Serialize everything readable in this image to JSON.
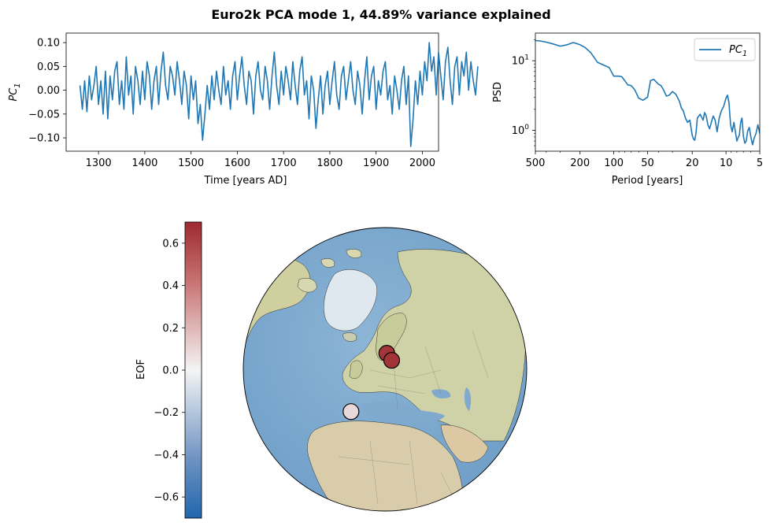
{
  "figure": {
    "title": "Euro2k PCA mode 1, 44.89% variance explained"
  },
  "colors": {
    "series": "#1f77b4",
    "eof_high": "#9e2a2f",
    "eof_mid": "#f5f5f5",
    "eof_low": "#2166ac",
    "ocean": "#7fa9cd",
    "land": "#d9d6b0"
  },
  "chart_data": [
    {
      "id": "pc_timeseries",
      "type": "line",
      "xlabel": "Time [years AD]",
      "ylabel_main": "PC",
      "ylabel_sub": "1",
      "xlim": [
        1230,
        2035
      ],
      "ylim": [
        -0.128,
        0.12
      ],
      "xticks": [
        1300,
        1400,
        1500,
        1600,
        1700,
        1800,
        1900,
        2000
      ],
      "yticks": [
        -0.1,
        -0.05,
        0.0,
        0.05,
        0.1
      ],
      "ytick_labels": [
        "−0.10",
        "−0.05",
        "0.00",
        "0.05",
        "0.10"
      ],
      "grid": false,
      "series": [
        {
          "x_start": 1260,
          "x_step": 5,
          "values": [
            0.01,
            -0.04,
            0.02,
            -0.045,
            0.03,
            -0.02,
            0.01,
            0.05,
            -0.03,
            0.02,
            -0.05,
            0.04,
            -0.06,
            0.03,
            -0.02,
            0.04,
            0.06,
            -0.03,
            0.02,
            -0.04,
            0.07,
            -0.01,
            0.03,
            -0.05,
            0.05,
            0.02,
            -0.03,
            0.04,
            -0.02,
            0.06,
            0.03,
            -0.04,
            0.02,
            0.05,
            -0.03,
            0.04,
            0.08,
            0.01,
            -0.02,
            0.05,
            0.03,
            -0.01,
            0.06,
            0.02,
            -0.03,
            0.04,
            0.01,
            -0.06,
            0.03,
            -0.02,
            0.02,
            -0.07,
            -0.03,
            -0.105,
            -0.05,
            0.01,
            -0.04,
            0.03,
            -0.02,
            0.04,
            0.0,
            -0.03,
            0.05,
            -0.01,
            0.02,
            -0.04,
            0.03,
            0.06,
            -0.02,
            0.03,
            0.07,
            0.01,
            -0.03,
            0.04,
            0.02,
            -0.05,
            0.03,
            0.06,
            0.0,
            -0.02,
            0.05,
            0.02,
            -0.04,
            0.03,
            0.08,
            0.01,
            -0.03,
            0.04,
            -0.01,
            0.05,
            0.02,
            -0.02,
            0.06,
            0.01,
            -0.03,
            0.04,
            0.07,
            -0.01,
            0.02,
            -0.06,
            0.03,
            0.0,
            -0.08,
            -0.02,
            0.03,
            -0.05,
            0.01,
            0.04,
            -0.03,
            0.02,
            0.06,
            -0.01,
            -0.04,
            0.03,
            0.05,
            -0.02,
            0.02,
            0.06,
            0.0,
            -0.03,
            0.04,
            0.01,
            -0.05,
            0.02,
            0.07,
            -0.02,
            0.03,
            0.05,
            -0.04,
            0.02,
            -0.01,
            0.04,
            0.06,
            -0.02,
            0.01,
            -0.05,
            0.03,
            0.0,
            -0.04,
            0.02,
            0.05,
            -0.03,
            0.03,
            -0.118,
            -0.06,
            0.02,
            -0.03,
            0.04,
            -0.01,
            0.06,
            0.02,
            0.1,
            0.04,
            0.07,
            -0.01,
            0.08,
            0.03,
            -0.02,
            0.06,
            0.09,
            0.02,
            -0.03,
            0.05,
            0.07,
            -0.01,
            0.06,
            0.03,
            0.08,
            0.0,
            0.06,
            0.02,
            -0.01,
            0.05
          ]
        }
      ]
    },
    {
      "id": "pc_psd",
      "type": "line",
      "xscale": "log-reversed",
      "yscale": "log",
      "xlabel": "Period [years]",
      "ylabel": "PSD",
      "xlim": [
        500,
        5
      ],
      "ylim": [
        0.5,
        25
      ],
      "xticks": [
        500,
        200,
        100,
        50,
        20,
        10,
        5
      ],
      "yticks_main": [
        1,
        10
      ],
      "legend_position": "top-right",
      "series": [
        {
          "name_main": "PC",
          "name_sub": "1",
          "x": [
            500,
            450,
            400,
            350,
            300,
            260,
            230,
            200,
            180,
            160,
            140,
            120,
            110,
            100,
            90,
            85,
            80,
            75,
            70,
            65,
            60,
            55,
            50,
            47,
            44,
            40,
            38,
            36,
            34,
            32,
            30,
            28,
            26,
            25,
            24,
            23,
            22,
            21,
            20,
            19.5,
            19,
            18.5,
            18,
            17,
            16,
            15.5,
            15,
            14.5,
            14,
            13.5,
            13,
            12.5,
            12,
            11.5,
            11,
            10.5,
            10,
            9.7,
            9.4,
            9.1,
            8.8,
            8.5,
            8.2,
            8,
            7.8,
            7.6,
            7.4,
            7.2,
            7,
            6.8,
            6.6,
            6.4,
            6.2,
            6,
            5.8,
            5.6,
            5.4,
            5.2,
            5
          ],
          "y": [
            19.5,
            19.2,
            18.5,
            17.5,
            16.2,
            17,
            18.3,
            17,
            15.5,
            13,
            9.5,
            8.5,
            8,
            6,
            6,
            5.9,
            5.2,
            4.5,
            4.4,
            3.8,
            2.9,
            2.7,
            3,
            5.2,
            5.4,
            4.6,
            4.4,
            3.8,
            3.1,
            3.2,
            3.6,
            3.3,
            2.6,
            2.1,
            1.9,
            1.5,
            1.3,
            1.4,
            0.85,
            0.75,
            0.72,
            0.9,
            1.5,
            1.7,
            1.4,
            1.8,
            1.6,
            1.2,
            1.05,
            1.3,
            1.6,
            1.4,
            0.95,
            1.5,
            1.9,
            2.2,
            2.9,
            3.2,
            2.5,
            1.2,
            0.95,
            1.3,
            0.9,
            0.7,
            0.78,
            0.85,
            1.3,
            1.5,
            0.82,
            0.65,
            0.7,
            0.98,
            1.1,
            0.8,
            0.62,
            0.78,
            0.9,
            1.2,
            0.9
          ]
        }
      ]
    },
    {
      "id": "eof_map",
      "type": "scatter",
      "projection": "orthographic",
      "center_lat": 62,
      "center_lon": 20,
      "colorbar_label": "EOF",
      "colorbar_range": [
        -0.7,
        0.7
      ],
      "colorbar_ticks": [
        -0.6,
        -0.4,
        -0.2,
        0.0,
        0.2,
        0.4,
        0.6
      ],
      "colorbar_tick_labels": [
        "−0.6",
        "−0.4",
        "−0.2",
        "0.0",
        "0.2",
        "0.4",
        "0.6"
      ],
      "points": [
        {
          "lat": 68.5,
          "lon": 22.0,
          "value": 0.66
        },
        {
          "lat": 65.5,
          "lon": 26.5,
          "value": 0.67
        },
        {
          "lat": 42.5,
          "lon": 1.0,
          "value": 0.1
        }
      ]
    }
  ]
}
